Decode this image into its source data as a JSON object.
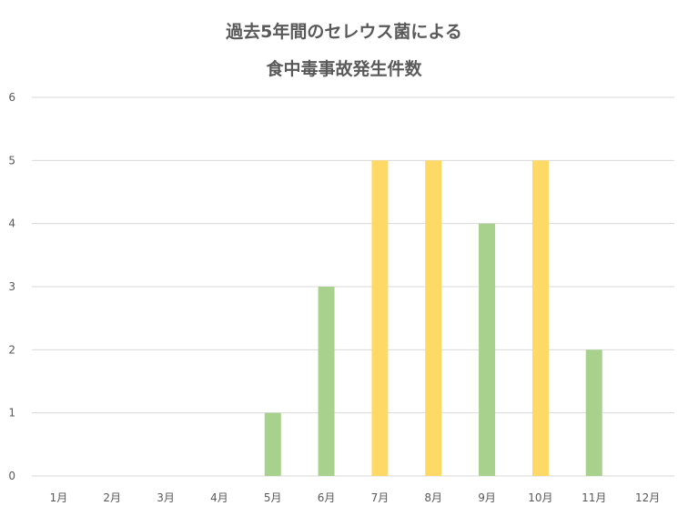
{
  "chart_data": {
    "type": "bar",
    "title": "過去5年間のセレウス菌による食中毒事故発生件数",
    "title_lines": [
      "過去5年間のセレウス菌による",
      "食中毒事故発生件数"
    ],
    "xlabel": "",
    "ylabel": "",
    "categories": [
      "1月",
      "2月",
      "3月",
      "4月",
      "5月",
      "6月",
      "7月",
      "8月",
      "9月",
      "10月",
      "11月",
      "12月"
    ],
    "values": [
      0,
      0,
      0,
      0,
      1,
      3,
      5,
      5,
      4,
      5,
      2,
      0
    ],
    "bar_colors": [
      "#a9d18e",
      "#a9d18e",
      "#a9d18e",
      "#a9d18e",
      "#a9d18e",
      "#a9d18e",
      "#ffd966",
      "#ffd966",
      "#a9d18e",
      "#ffd966",
      "#a9d18e",
      "#a9d18e"
    ],
    "ylim": [
      0,
      6
    ],
    "yticks": [
      0,
      1,
      2,
      3,
      4,
      5,
      6
    ],
    "grid": true,
    "legend": "none"
  },
  "colors": {
    "green": "#a9d18e",
    "yellow": "#ffd966",
    "grid": "#d9d9d9",
    "text": "#595959"
  }
}
